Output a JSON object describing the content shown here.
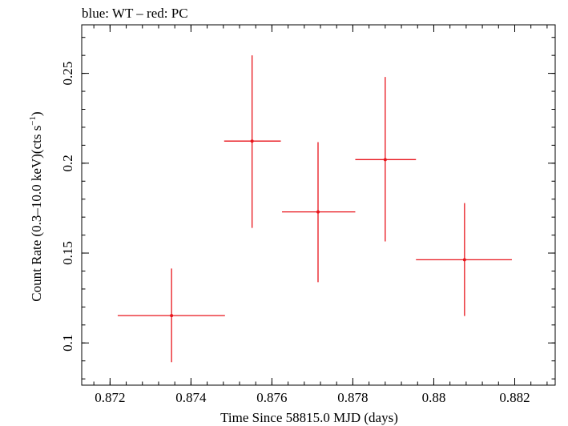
{
  "chart_data": {
    "type": "scatter",
    "title": "blue: WT – red: PC",
    "xlabel": "Time Since 58815.0 MJD (days)",
    "ylabel_main": "Count Rate (0.3–10.0 keV)(cts s",
    "ylabel_sup": "−1",
    "ylabel_close": ")",
    "xlim": [
      0.8713,
      0.883
    ],
    "ylim": [
      0.0765,
      0.277
    ],
    "x_ticks": [
      0.872,
      0.874,
      0.876,
      0.878,
      0.88,
      0.882
    ],
    "x_tick_labels": [
      "0.872",
      "0.874",
      "0.876",
      "0.878",
      "0.88",
      "0.882"
    ],
    "y_ticks": [
      0.1,
      0.15,
      0.2,
      0.25
    ],
    "y_tick_labels": [
      "0.1",
      "0.15",
      "0.2",
      "0.25"
    ],
    "grid": false,
    "colors": {
      "PC": "#e8141b",
      "frame": "#000000"
    },
    "series": [
      {
        "name": "PC",
        "points": [
          {
            "x": 0.87352,
            "y": 0.1152,
            "xlo": 0.87219,
            "xhi": 0.87484,
            "ylo": 0.0893,
            "yhi": 0.1414
          },
          {
            "x": 0.87551,
            "y": 0.2123,
            "xlo": 0.87482,
            "xhi": 0.87622,
            "ylo": 0.164,
            "yhi": 0.26
          },
          {
            "x": 0.87714,
            "y": 0.1729,
            "xlo": 0.87625,
            "xhi": 0.87806,
            "ylo": 0.1338,
            "yhi": 0.2117
          },
          {
            "x": 0.8788,
            "y": 0.202,
            "xlo": 0.87806,
            "xhi": 0.87956,
            "ylo": 0.1565,
            "yhi": 0.248
          },
          {
            "x": 0.88076,
            "y": 0.1463,
            "xlo": 0.87956,
            "xhi": 0.88193,
            "ylo": 0.115,
            "yhi": 0.1778
          }
        ]
      }
    ]
  }
}
